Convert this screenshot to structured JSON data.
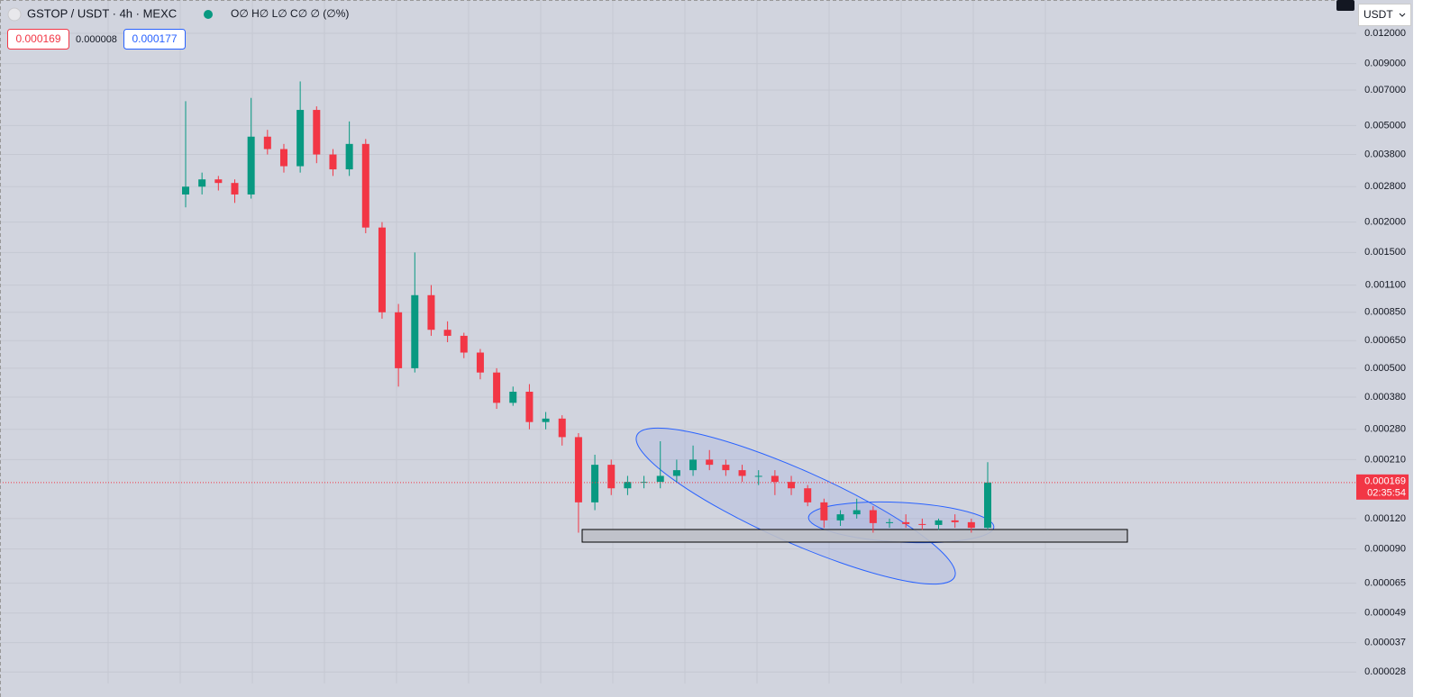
{
  "chart_data": {
    "type": "candlestick",
    "title": "GSTOP / USDT · 4h · MEXC",
    "ohlc_legend": "O∅ H∅ L∅ C∅ ∅ (∅%)",
    "bid": "0.000169",
    "spread": "0.000008",
    "ask": "0.000177",
    "countdown": "02:35:54",
    "currency": "USDT",
    "log_scale": true,
    "grid": true,
    "up_color": "#089981",
    "down_color": "#f23645",
    "ylim": [
      2.51e-05,
      0.01646
    ],
    "yticks": [
      {
        "value": 0.012,
        "label": "0.012000"
      },
      {
        "value": 0.009,
        "label": "0.009000"
      },
      {
        "value": 0.007,
        "label": "0.007000"
      },
      {
        "value": 0.005,
        "label": "0.005000"
      },
      {
        "value": 0.0038,
        "label": "0.003800"
      },
      {
        "value": 0.0028,
        "label": "0.002800"
      },
      {
        "value": 0.002,
        "label": "0.002000"
      },
      {
        "value": 0.0015,
        "label": "0.001500"
      },
      {
        "value": 0.0011,
        "label": "0.001100"
      },
      {
        "value": 0.00085,
        "label": "0.000850"
      },
      {
        "value": 0.00065,
        "label": "0.000650"
      },
      {
        "value": 0.0005,
        "label": "0.000500"
      },
      {
        "value": 0.00038,
        "label": "0.000380"
      },
      {
        "value": 0.00028,
        "label": "0.000280"
      },
      {
        "value": 0.00021,
        "label": "0.000210"
      },
      {
        "value": 0.00012,
        "label": "0.000120"
      },
      {
        "value": 9e-05,
        "label": "0.000090"
      },
      {
        "value": 6.5e-05,
        "label": "0.000065"
      },
      {
        "value": 4.9e-05,
        "label": "0.000049"
      },
      {
        "value": 3.7e-05,
        "label": "0.000037"
      },
      {
        "value": 2.8e-05,
        "label": "0.000028"
      }
    ],
    "open": [
      0.0026,
      0.0028,
      0.003,
      0.0029,
      0.0026,
      0.0045,
      0.004,
      0.0034,
      0.0058,
      0.0038,
      0.0033,
      0.0042,
      0.0019,
      0.00085,
      0.0005,
      0.001,
      0.00072,
      0.00068,
      0.00058,
      0.00048,
      0.00036,
      0.0004,
      0.0003,
      0.00031,
      0.00026,
      0.00014,
      0.0002,
      0.00016,
      0.00017,
      0.00017,
      0.00018,
      0.00019,
      0.00021,
      0.0002,
      0.00019,
      0.00018,
      0.00018,
      0.00017,
      0.00016,
      0.00014,
      0.000118,
      0.000125,
      0.00013,
      0.000115,
      0.000116,
      0.000114,
      0.000113,
      0.000118,
      0.000116,
      0.00011
    ],
    "high": [
      0.0063,
      0.0032,
      0.0031,
      0.003,
      0.0065,
      0.0048,
      0.0042,
      0.0076,
      0.006,
      0.004,
      0.0052,
      0.0044,
      0.002,
      0.00092,
      0.0015,
      0.0011,
      0.00078,
      0.0007,
      0.0006,
      0.0005,
      0.00042,
      0.00043,
      0.00033,
      0.00032,
      0.00027,
      0.00022,
      0.00021,
      0.00018,
      0.00018,
      0.00025,
      0.00021,
      0.00024,
      0.00023,
      0.00021,
      0.0002,
      0.00019,
      0.00019,
      0.00018,
      0.000165,
      0.000145,
      0.00013,
      0.000145,
      0.000135,
      0.00012,
      0.000125,
      0.00012,
      0.00012,
      0.000125,
      0.00012,
      0.000205
    ],
    "low": [
      0.0023,
      0.0026,
      0.0027,
      0.0024,
      0.0025,
      0.0038,
      0.0032,
      0.0032,
      0.0035,
      0.0031,
      0.0031,
      0.0018,
      0.0008,
      0.00042,
      0.00048,
      0.00068,
      0.00064,
      0.00055,
      0.00045,
      0.00034,
      0.00035,
      0.00028,
      0.00028,
      0.00024,
      0.000105,
      0.00013,
      0.00015,
      0.00015,
      0.00016,
      0.00016,
      0.00017,
      0.00018,
      0.00019,
      0.00018,
      0.00017,
      0.000165,
      0.00015,
      0.00015,
      0.000135,
      0.00011,
      0.000112,
      0.00012,
      0.000105,
      0.00011,
      0.00011,
      0.000108,
      0.000108,
      0.00011,
      0.000105,
      0.000108
    ],
    "close": [
      0.0028,
      0.003,
      0.0029,
      0.0026,
      0.0045,
      0.004,
      0.0034,
      0.0058,
      0.0038,
      0.0033,
      0.0042,
      0.0019,
      0.00085,
      0.0005,
      0.001,
      0.00072,
      0.00068,
      0.00058,
      0.00048,
      0.00036,
      0.0004,
      0.0003,
      0.00031,
      0.00026,
      0.00014,
      0.0002,
      0.00016,
      0.00017,
      0.00017,
      0.00018,
      0.00019,
      0.00021,
      0.0002,
      0.00019,
      0.00018,
      0.00018,
      0.00017,
      0.00016,
      0.00014,
      0.000118,
      0.000125,
      0.00013,
      0.000115,
      0.000116,
      0.000114,
      0.000113,
      0.000118,
      0.000116,
      0.00011,
      0.000169
    ]
  }
}
